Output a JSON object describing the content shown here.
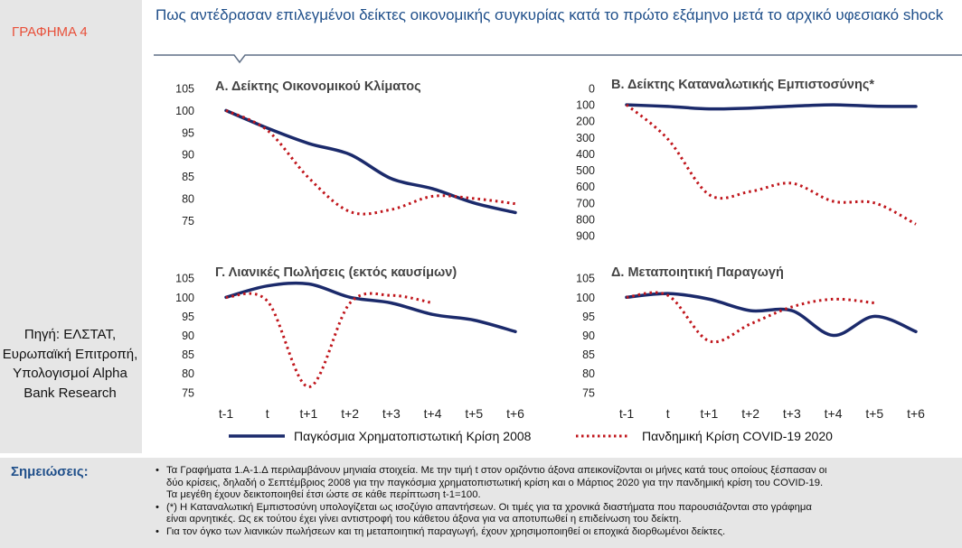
{
  "figure_label": "ΓΡΑΦΗΜΑ 4",
  "title": "Πως αντέδρασαν επιλεγμένοι δείκτες οικονομικής συγκυρίας κατά το πρώτο εξάμηνο μετά το αρχικό υφεσιακό  shock",
  "source": "Πηγή: ΕΛΣΤΑΤ, Ευρωπαϊκή Επιτροπή, Υπολογισμοί Alpha Bank Research",
  "notes_heading": "Σημειώσεις:",
  "notes": [
    "Τα Γραφήματα 1.Α-1.Δ περιλαμβάνουν μηνιαία στοιχεία. Με την τιμή t στον οριζόντιο άξονα απεικονίζονται οι μήνες κατά τους οποίους ξέσπασαν οι\nδύο κρίσεις, δηλαδή ο Σεπτέμβριος 2008 για την παγκόσμια χρηματοπιστωτική κρίση και ο Μάρτιος 2020 για την πανδημική κρίση του COVID-19.\nΤα μεγέθη έχουν δεικτοποιηθεί έτσι ώστε σε κάθε περίπτωση t-1=100.",
    "(*) Η Καταναλωτική Εμπιστοσύνη υπολογίζεται ως ισοζύγιο απαντήσεων. Οι τιμές για τα χρονικά διαστήματα που παρουσιάζονται στο γράφημα\nείναι αρνητικές. Ως εκ τούτου έχει γίνει αντιστροφή του κάθετου άξονα για να αποτυπωθεί η επιδείνωση του δείκτη.",
    "Για τον όγκο των λιανικών πωλήσεων και τη μεταποιητική παραγωγή, έχουν χρησιμοποιηθεί οι εποχικά διορθωμένοι δείκτες."
  ],
  "legend": {
    "series_2008": "Παγκόσμια Χρηματοπιστωτική Κρίση 2008",
    "series_2020": "Πανδημική Κρίση COVID-19 2020"
  },
  "colors": {
    "series_2008": "#1b2a6b",
    "series_2020": "#c0161c",
    "title": "#1f4f8a",
    "label": "#e8503a"
  },
  "chart_data": [
    {
      "type": "line",
      "title": "Α. Δείκτης Οικονομικού Κλίματος",
      "categories": [
        "t-1",
        "t",
        "t+1",
        "t+2",
        "t+3",
        "t+4",
        "t+5",
        "t+6"
      ],
      "yticks": [
        105,
        100,
        95,
        90,
        85,
        80,
        75
      ],
      "ylim": [
        73,
        105
      ],
      "inverted": false,
      "series": [
        {
          "name": "Παγκόσμια Χρηματοπιστωτική Κρίση 2008",
          "style": "solid",
          "values": [
            100,
            96,
            92.5,
            90,
            84.5,
            82.2,
            79,
            76.8
          ]
        },
        {
          "name": "Πανδημική Κρίση COVID-19 2020",
          "style": "dotted",
          "values": [
            100,
            95.5,
            84.7,
            77,
            77.5,
            80.5,
            80,
            78.8
          ]
        }
      ]
    },
    {
      "type": "line",
      "title": "Β. Δείκτης Καταναλωτικής Εμπιστοσύνης*",
      "categories": [
        "t-1",
        "t",
        "t+1",
        "t+2",
        "t+3",
        "t+4",
        "t+5",
        "t+6"
      ],
      "yticks": [
        0,
        100,
        200,
        300,
        400,
        500,
        600,
        700,
        800,
        900
      ],
      "ylim": [
        0,
        900
      ],
      "inverted": true,
      "series": [
        {
          "name": "Παγκόσμια Χρηματοπιστωτική Κρίση 2008",
          "style": "solid",
          "values": [
            100,
            110,
            125,
            120,
            108,
            100,
            108,
            110
          ]
        },
        {
          "name": "Πανδημική Κρίση COVID-19 2020",
          "style": "dotted",
          "values": [
            100,
            310,
            650,
            630,
            580,
            690,
            700,
            830
          ]
        }
      ]
    },
    {
      "type": "line",
      "title": "Γ. Λιανικές Πωλήσεις (εκτός καυσίμων)",
      "categories": [
        "t-1",
        "t",
        "t+1",
        "t+2",
        "t+3",
        "t+4",
        "t+5",
        "t+6"
      ],
      "yticks": [
        105,
        100,
        95,
        90,
        85,
        80,
        75
      ],
      "ylim": [
        74,
        106
      ],
      "inverted": false,
      "series": [
        {
          "name": "Παγκόσμια Χρηματοπιστωτική Κρίση 2008",
          "style": "solid",
          "values": [
            100,
            103,
            103.5,
            100,
            98.5,
            95.5,
            94,
            91
          ]
        },
        {
          "name": "Πανδημική Κρίση COVID-19 2020",
          "style": "dotted",
          "values": [
            100,
            99,
            76.5,
            98.5,
            100.5,
            98.5,
            null,
            null
          ]
        }
      ]
    },
    {
      "type": "line",
      "title": "Δ. Μεταποιητική Παραγωγή",
      "categories": [
        "t-1",
        "t",
        "t+1",
        "t+2",
        "t+3",
        "t+4",
        "t+5",
        "t+6"
      ],
      "yticks": [
        105,
        100,
        95,
        90,
        85,
        80,
        75
      ],
      "ylim": [
        74,
        106
      ],
      "inverted": false,
      "series": [
        {
          "name": "Παγκόσμια Χρηματοπιστωτική Κρίση 2008",
          "style": "solid",
          "values": [
            100,
            101,
            99.5,
            96.5,
            96.5,
            90,
            95,
            91
          ]
        },
        {
          "name": "Πανδημική Κρίση COVID-19 2020",
          "style": "dotted",
          "values": [
            100,
            100.5,
            88.5,
            93,
            97.5,
            99.5,
            98.5,
            null
          ]
        }
      ]
    }
  ]
}
